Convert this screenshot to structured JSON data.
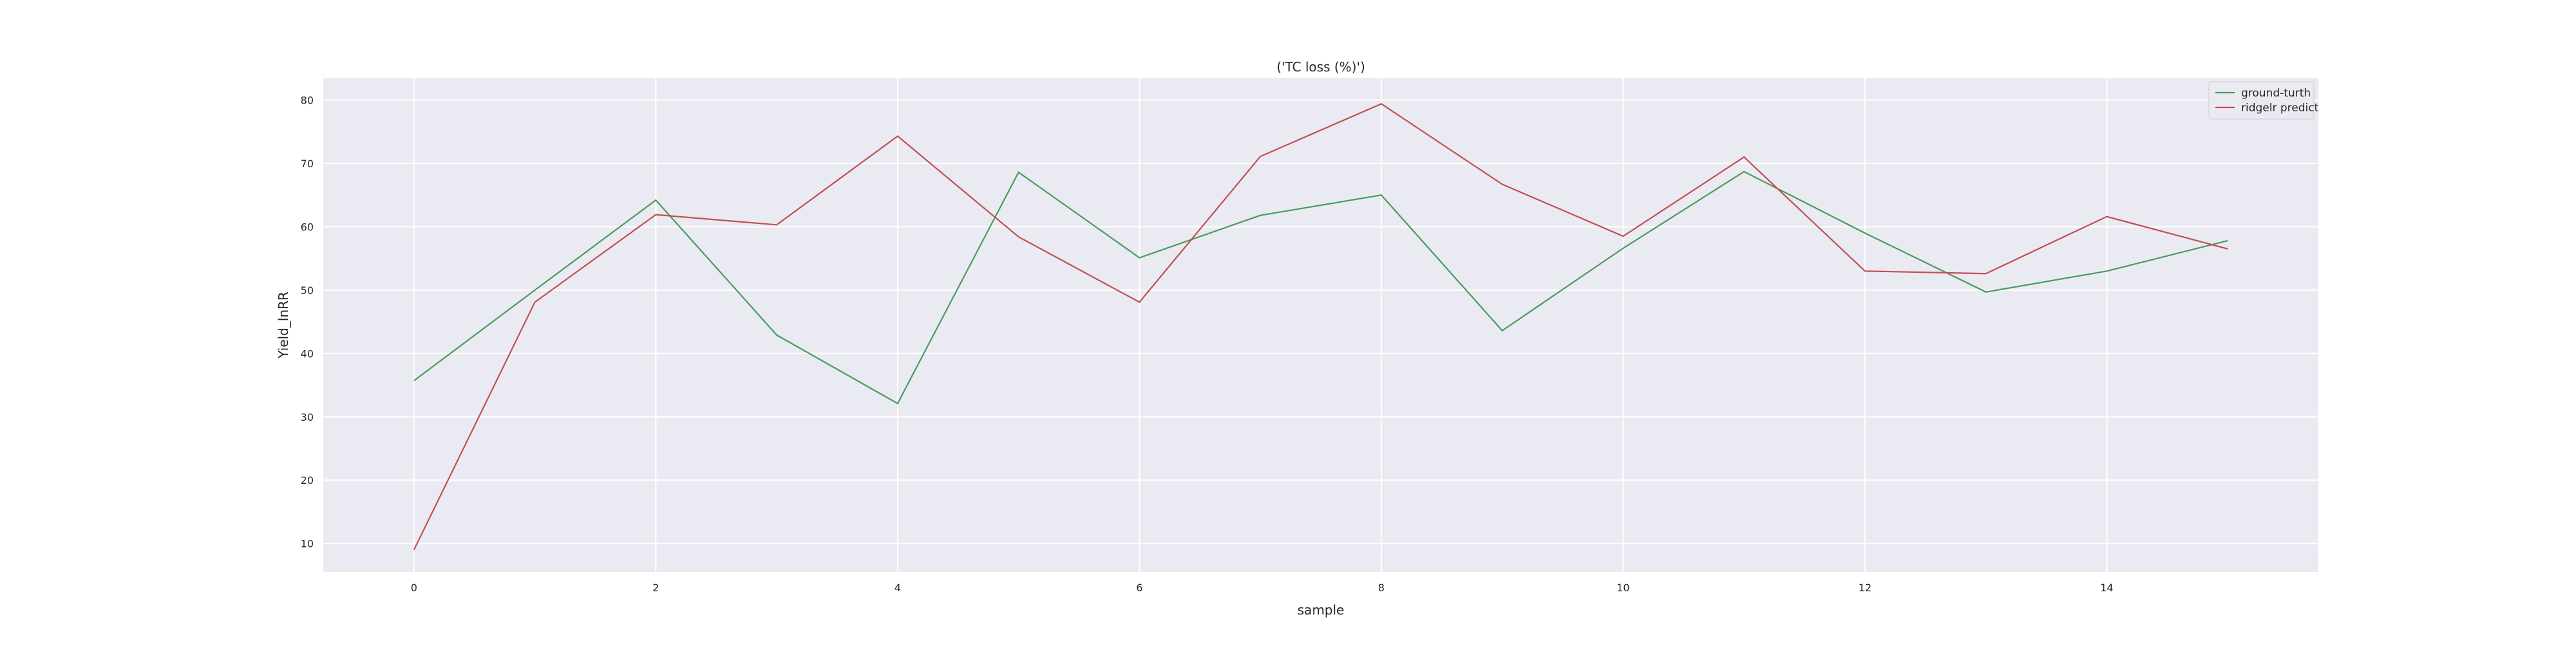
{
  "chart_data": {
    "type": "line",
    "title": "('TC loss (%)')",
    "xlabel": "sample",
    "ylabel": "Yield_lnRR",
    "x": [
      0,
      1,
      2,
      3,
      4,
      5,
      6,
      7,
      8,
      9,
      10,
      11,
      12,
      13,
      14,
      15
    ],
    "xlim": [
      -0.75,
      15.75
    ],
    "ylim": [
      5.5,
      83.5
    ],
    "xticks": [
      0,
      2,
      4,
      6,
      8,
      10,
      12,
      14
    ],
    "yticks": [
      10,
      20,
      30,
      40,
      50,
      60,
      70,
      80
    ],
    "grid": true,
    "legend_position": "top-right",
    "series": [
      {
        "name": "ground-turth",
        "color": "#4c9a5a",
        "values": [
          35.7,
          50.0,
          64.2,
          42.9,
          32.1,
          68.6,
          55.1,
          61.8,
          65.0,
          43.6,
          56.6,
          68.7,
          59.0,
          49.7,
          53.0,
          57.8
        ]
      },
      {
        "name": "ridgelr predict",
        "color": "#c44e52",
        "values": [
          9.0,
          48.1,
          61.9,
          60.3,
          74.3,
          58.4,
          48.1,
          71.1,
          79.4,
          66.7,
          58.5,
          71.0,
          53.0,
          52.6,
          61.6,
          56.5
        ]
      }
    ]
  }
}
